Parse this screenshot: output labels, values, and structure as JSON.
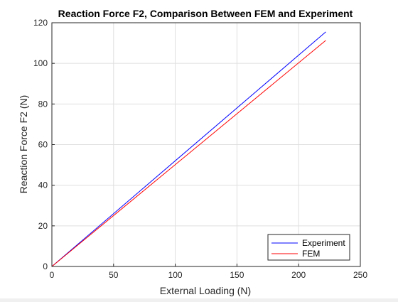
{
  "chart_data": {
    "type": "line",
    "title": "Reaction Force F2, Comparison Between FEM and Experiment",
    "xlabel": "External Loading (N)",
    "ylabel": "Reaction Force F2 (N)",
    "xlim": [
      0,
      250
    ],
    "ylim": [
      0,
      120
    ],
    "xticks": [
      0,
      50,
      100,
      150,
      200,
      250
    ],
    "yticks": [
      0,
      20,
      40,
      60,
      80,
      100,
      120
    ],
    "grid": true,
    "legend_position": "bottom-right",
    "series": [
      {
        "name": "Experiment",
        "color": "#0000ff",
        "x": [
          0,
          222
        ],
        "y": [
          0,
          115.5
        ]
      },
      {
        "name": "FEM",
        "color": "#ff0000",
        "x": [
          0,
          222
        ],
        "y": [
          0,
          111.3
        ]
      }
    ]
  }
}
